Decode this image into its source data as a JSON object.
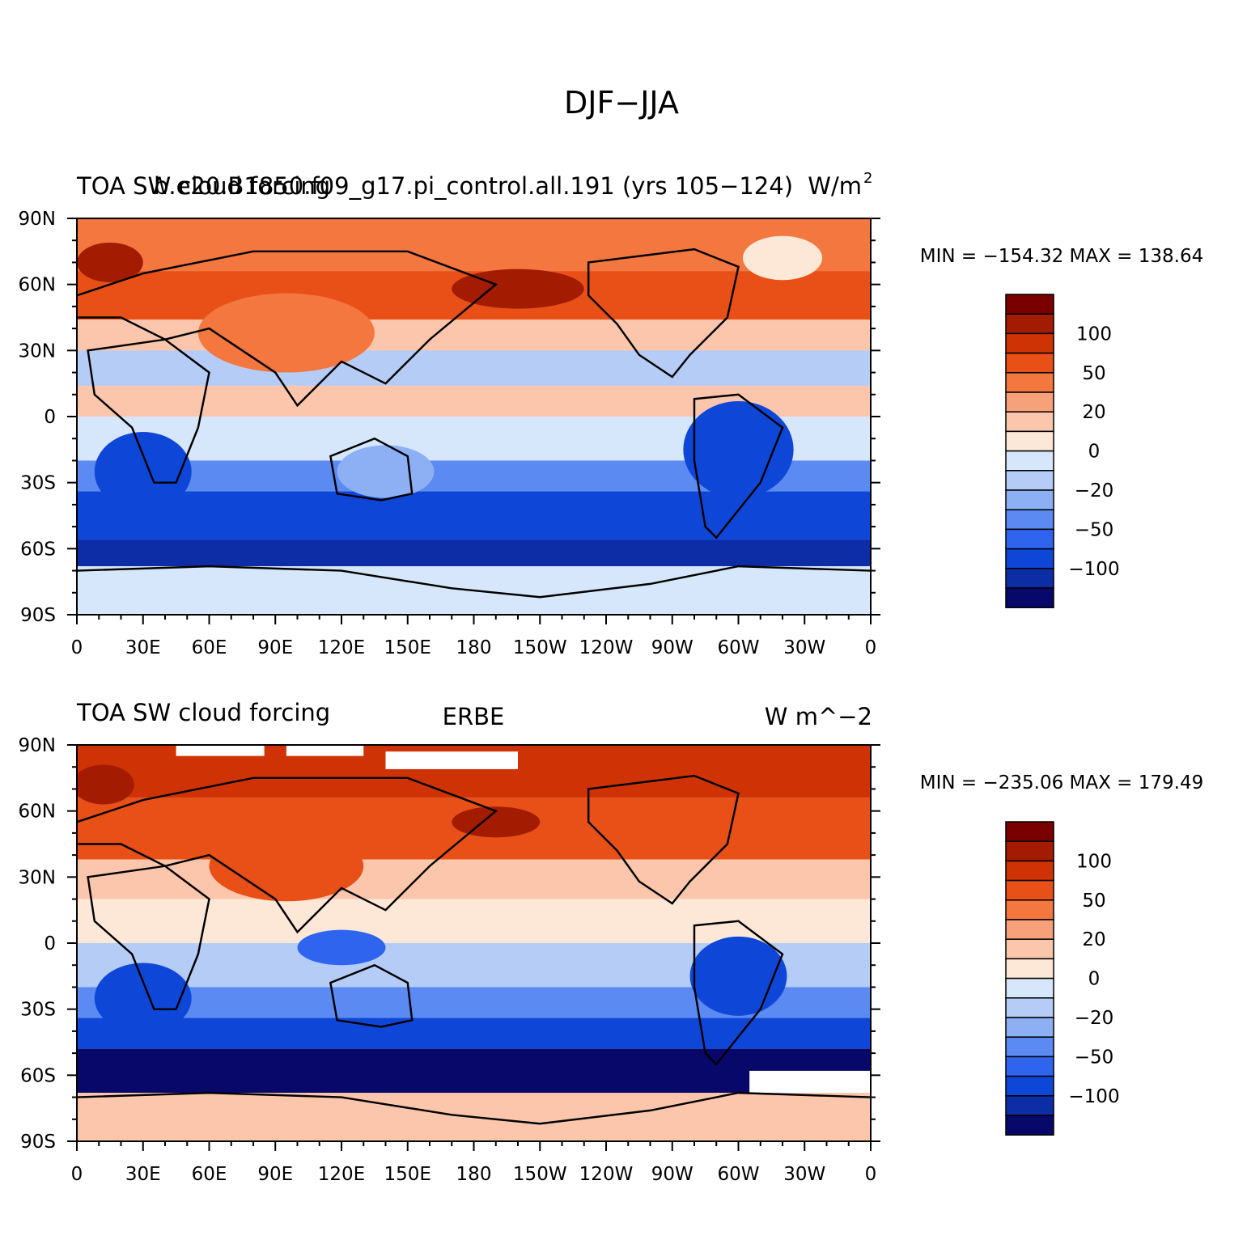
{
  "figure_title": "DJF−JJA",
  "colorbar_labels": [
    "100",
    "50",
    "20",
    "0",
    "−20",
    "−50",
    "−100"
  ],
  "x_ticks": [
    "0",
    "30E",
    "60E",
    "90E",
    "120E",
    "150E",
    "180",
    "150W",
    "120W",
    "90W",
    "60W",
    "30W",
    "0"
  ],
  "y_ticks": [
    "90N",
    "60N",
    "30N",
    "0",
    "30S",
    "60S",
    "90S"
  ],
  "panels": [
    {
      "left_title": "TOA SW cloud forcing",
      "center_title": "b.e20.B1850.f09_g17.pi_control.all.191 (yrs 105−124)",
      "units": "W/m",
      "units_sup": "2",
      "stats": "MIN = −154.32  MAX = 138.64"
    },
    {
      "left_title": "TOA SW cloud forcing",
      "center_title": "ERBE",
      "units": "W m^−2",
      "units_sup": "",
      "stats": "MIN = −235.06  MAX = 179.49"
    }
  ],
  "colors": {
    "levels": [
      "#08086b",
      "#0c2da6",
      "#0e47d8",
      "#2f64ef",
      "#5b8af2",
      "#8db0f5",
      "#b5ccf7",
      "#d6e7fb",
      "#fde8d8",
      "#fbc6ab",
      "#f7a17b",
      "#f3773f",
      "#e85018",
      "#cf3305",
      "#a31c02",
      "#7a0000"
    ]
  },
  "chart_data": {
    "type": "heatmap",
    "title": "DJF−JJA",
    "variable": "TOA SW cloud forcing",
    "units": "W/m2",
    "contour_levels": [
      -100,
      -50,
      -20,
      0,
      20,
      50,
      100
    ],
    "x_range": [
      "0",
      "0"
    ],
    "y_range": [
      "90S",
      "90N"
    ],
    "series": [
      {
        "name": "b.e20.B1850.f09_g17.pi_control.all.191 (yrs 105−124)",
        "min": -154.32,
        "max": 138.64
      },
      {
        "name": "ERBE",
        "min": -235.06,
        "max": 179.49
      }
    ]
  }
}
